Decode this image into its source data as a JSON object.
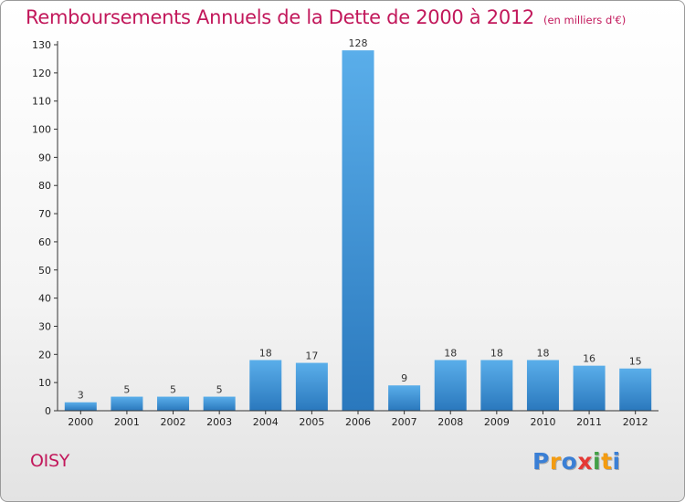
{
  "title": "Remboursements Annuels de la Dette de 2000 à 2012",
  "subtitle": "(en milliers d'€)",
  "commune": "OISY",
  "logo": {
    "letters": [
      "P",
      "r",
      "o",
      "x",
      "i",
      "t",
      "i"
    ],
    "colors": [
      "#3a7fd5",
      "#f39c12",
      "#3a7fd5",
      "#e53935",
      "#43a047",
      "#f39c12",
      "#3a7fd5"
    ]
  },
  "colors": {
    "bar_top": "#5aaeea",
    "bar_bottom": "#2a78bd",
    "title": "#c2185b"
  },
  "chart_data": {
    "type": "bar",
    "title": "Remboursements Annuels de la Dette de 2000 à 2012",
    "xlabel": "",
    "ylabel": "",
    "categories": [
      "2000",
      "2001",
      "2002",
      "2003",
      "2004",
      "2005",
      "2006",
      "2007",
      "2008",
      "2009",
      "2010",
      "2011",
      "2012"
    ],
    "values": [
      3,
      5,
      5,
      5,
      18,
      17,
      128,
      9,
      18,
      18,
      18,
      16,
      15
    ],
    "ylim": [
      0,
      130
    ],
    "yticks": [
      0,
      10,
      20,
      30,
      40,
      50,
      60,
      70,
      80,
      90,
      100,
      110,
      120,
      130
    ],
    "grid": false
  }
}
